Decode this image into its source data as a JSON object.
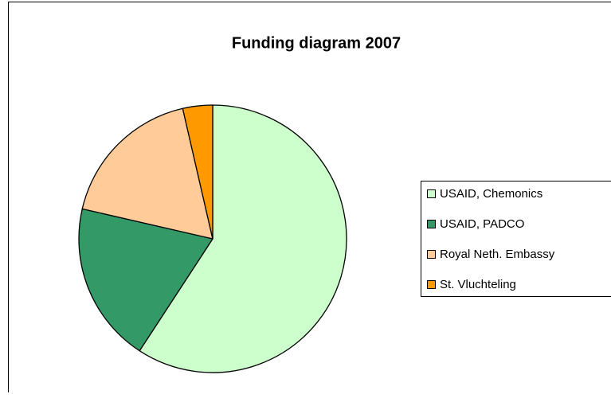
{
  "chart_data": {
    "type": "pie",
    "title": "Funding diagram 2007",
    "categories": [
      "USAID, Chemonics",
      "USAID, PADCO",
      "Royal Neth.  Embassy",
      "St. Vluchteling"
    ],
    "values": [
      59.2,
      19.4,
      17.8,
      3.6
    ],
    "colors": [
      "#ccffcc",
      "#339966",
      "#ffcc99",
      "#ff9900"
    ],
    "legend": "right"
  }
}
